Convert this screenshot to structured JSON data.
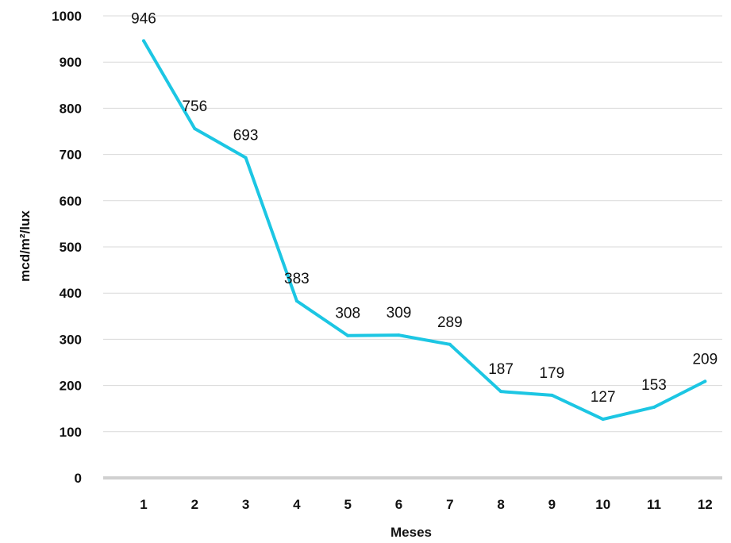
{
  "chart_data": {
    "type": "line",
    "title": "",
    "xlabel": "Meses",
    "ylabel": "mcd/m²/lux",
    "categories": [
      "1",
      "2",
      "3",
      "4",
      "5",
      "6",
      "7",
      "8",
      "9",
      "10",
      "11",
      "12"
    ],
    "series": [
      {
        "values": [
          946,
          756,
          693,
          383,
          308,
          309,
          289,
          187,
          179,
          127,
          153,
          209
        ],
        "color": "#1cc6e3"
      }
    ],
    "data_labels": [
      "946",
      "756",
      "693",
      "383",
      "308",
      "309",
      "289",
      "187",
      "179",
      "127",
      "153",
      "209"
    ],
    "ylim": [
      0,
      1000
    ],
    "yticks": [
      "0",
      "100",
      "200",
      "300",
      "400",
      "500",
      "600",
      "700",
      "800",
      "900",
      "1000"
    ],
    "grid": true,
    "legend": "none",
    "colors": {
      "line": "#1cc6e3",
      "grid": "#d9d9d9",
      "text": "#111111"
    }
  }
}
